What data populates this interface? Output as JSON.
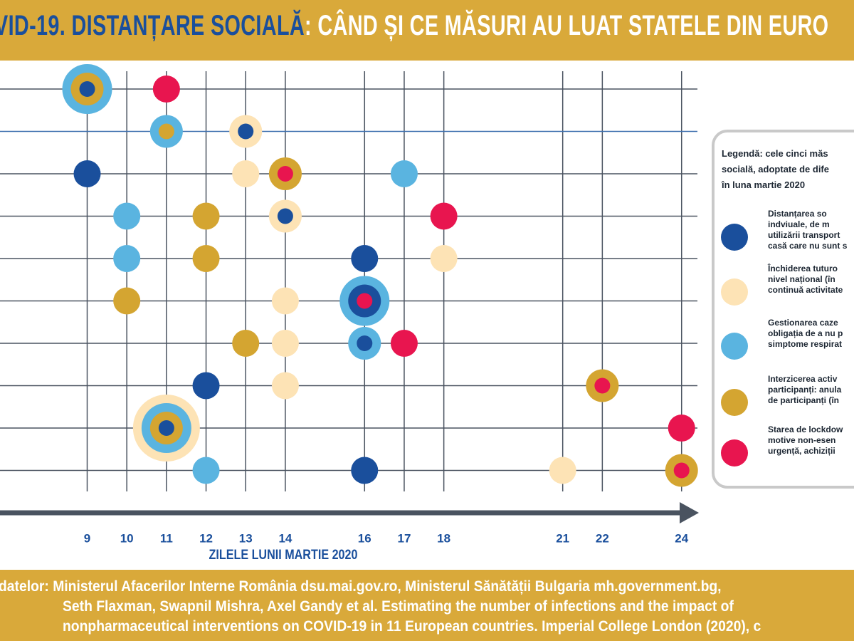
{
  "chart_data": {
    "type": "dot-matrix",
    "title": [
      "VID-19. DISTANȚARE SOCIALĂ",
      ": CÂND ȘI CE MĂSURI AU LUAT STATELE DIN EURO"
    ],
    "xlabel": "ZILELE LUNII MARTIE 2020",
    "categories": [
      null,
      null,
      null,
      null,
      null,
      null,
      null,
      null,
      null,
      null
    ],
    "xlim": [
      6.8,
      24.4
    ],
    "xticks": [
      9,
      10,
      11,
      12,
      13,
      14,
      16,
      17,
      18,
      21,
      22,
      24
    ],
    "grid": true,
    "legend_title": "Legendă: cele cinci măs\nsocială, adoptate de dife\nîn luna martie 2020",
    "series": [
      {
        "name": "Distanțarea so\nindviuale, de m\nutilizării transport\ncasă care nu sunt s",
        "color": "#1a4f9c",
        "values": [
          9,
          13,
          9,
          14,
          16,
          16,
          16,
          12,
          11,
          16
        ]
      },
      {
        "name": "Închiderea tuturo\nnivel național (în\ncontinuă activitate",
        "color": "#fde3b5",
        "values": [
          null,
          13,
          13,
          14,
          18,
          14,
          14,
          14,
          11,
          21
        ]
      },
      {
        "name": "Gestionarea caze\nobligația de a nu p\nsimptome respirat",
        "color": "#5ab4e0",
        "values": [
          9,
          11,
          17,
          10,
          10,
          16,
          16,
          null,
          11,
          12
        ]
      },
      {
        "name": "Interzicerea activ\nparticipanți: anula\nde participanți (în",
        "color": "#d4a531",
        "values": [
          9,
          11,
          14,
          12,
          12,
          10,
          13,
          22,
          11,
          24
        ]
      },
      {
        "name": "Starea de lockdow\nmotive non-esen\nurgență, achiziții",
        "color": "#e8154f",
        "values": [
          11,
          null,
          14,
          18,
          null,
          16,
          17,
          22,
          24,
          24
        ]
      }
    ]
  },
  "footer": [
    "datelor: Ministerul Afacerilor Interne România dsu.mai.gov.ro, Ministerul Sănătății Bulgaria mh.government.bg,",
    "Seth Flaxman, Swapnil Mishra, Axel Gandy et al. Estimating the number of infections and the impact of",
    "nonpharmaceutical interventions on COVID-19 in 11 European countries. Imperial College London (2020), c"
  ]
}
